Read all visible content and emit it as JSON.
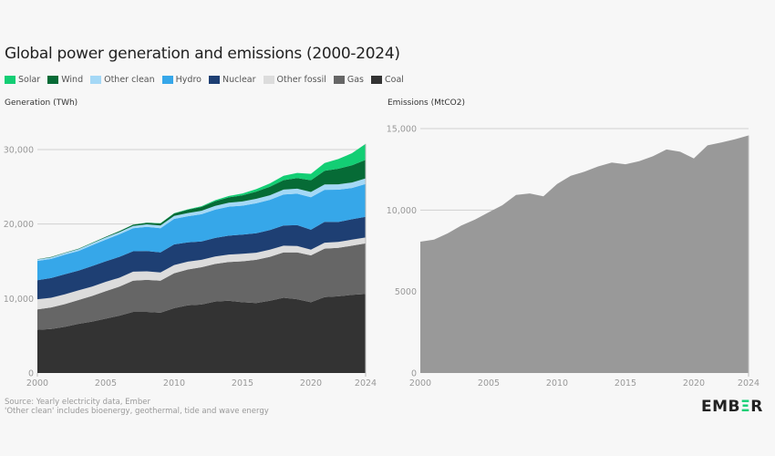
{
  "title": "Global power generation and emissions (2000-2024)",
  "footer": {
    "source": "Source: Yearly electricity data, Ember",
    "note": "'Other clean' includes bioenergy, geothermal, tide and wave energy"
  },
  "logo": "EMBER",
  "legend": [
    {
      "name": "Solar",
      "color": "#13ce74"
    },
    {
      "name": "Wind",
      "color": "#066b36"
    },
    {
      "name": "Other clean",
      "color": "#a4d8f6"
    },
    {
      "name": "Hydro",
      "color": "#36a7e9"
    },
    {
      "name": "Nuclear",
      "color": "#1e3f73"
    },
    {
      "name": "Other fossil",
      "color": "#dcdcdc"
    },
    {
      "name": "Gas",
      "color": "#666666"
    },
    {
      "name": "Coal",
      "color": "#333333"
    }
  ],
  "chart_data": [
    {
      "type": "area",
      "stacked": true,
      "ylabel": "Generation (TWh)",
      "ylim": [
        0,
        30000
      ],
      "yticks": [
        "0",
        "10,000",
        "20,000",
        "30,000"
      ],
      "ytick_values": [
        0,
        10000,
        20000,
        30000
      ],
      "xticks": [
        "2000",
        "2005",
        "2010",
        "2015",
        "2020",
        "2024"
      ],
      "xlim": [
        2000,
        2024
      ],
      "grid": true,
      "legend": "top-left",
      "x": [
        2000,
        2001,
        2002,
        2003,
        2004,
        2005,
        2006,
        2007,
        2008,
        2009,
        2010,
        2011,
        2012,
        2013,
        2014,
        2015,
        2016,
        2017,
        2018,
        2019,
        2020,
        2021,
        2022,
        2023,
        2024
      ],
      "series": [
        {
          "name": "Coal",
          "color": "#333333",
          "values": [
            5800,
            5900,
            6200,
            6600,
            6900,
            7300,
            7700,
            8200,
            8200,
            8100,
            8700,
            9100,
            9200,
            9600,
            9700,
            9500,
            9400,
            9700,
            10100,
            9900,
            9500,
            10200,
            10300,
            10500,
            10600
          ]
        },
        {
          "name": "Gas",
          "color": "#666666",
          "values": [
            2750,
            2900,
            3050,
            3200,
            3450,
            3700,
            3900,
            4200,
            4300,
            4300,
            4700,
            4800,
            5000,
            5050,
            5200,
            5500,
            5800,
            5900,
            6100,
            6300,
            6300,
            6500,
            6500,
            6600,
            6800
          ]
        },
        {
          "name": "Other fossil",
          "color": "#dcdcdc",
          "values": [
            1350,
            1300,
            1300,
            1300,
            1250,
            1250,
            1200,
            1200,
            1150,
            1100,
            1100,
            1050,
            1000,
            1000,
            1000,
            1000,
            950,
            950,
            900,
            850,
            750,
            800,
            800,
            800,
            800
          ]
        },
        {
          "name": "Nuclear",
          "color": "#1e3f73",
          "values": [
            2550,
            2650,
            2700,
            2650,
            2750,
            2750,
            2800,
            2750,
            2730,
            2700,
            2760,
            2600,
            2460,
            2480,
            2540,
            2570,
            2610,
            2640,
            2700,
            2800,
            2690,
            2800,
            2680,
            2740,
            2770
          ]
        },
        {
          "name": "Hydro",
          "color": "#36a7e9",
          "values": [
            2600,
            2570,
            2630,
            2630,
            2800,
            2920,
            3030,
            3080,
            3250,
            3250,
            3430,
            3500,
            3660,
            3800,
            3900,
            3900,
            4030,
            4060,
            4180,
            4220,
            4360,
            4300,
            4330,
            4200,
            4400
          ]
        },
        {
          "name": "Other clean",
          "color": "#a4d8f6",
          "values": [
            200,
            210,
            220,
            240,
            260,
            270,
            290,
            310,
            330,
            360,
            400,
            430,
            460,
            500,
            530,
            560,
            600,
            620,
            650,
            680,
            700,
            710,
            720,
            740,
            760
          ]
        },
        {
          "name": "Wind",
          "color": "#066b36",
          "values": [
            30,
            40,
            50,
            60,
            80,
            100,
            130,
            170,
            220,
            270,
            340,
            440,
            520,
            640,
            710,
            830,
            960,
            1140,
            1270,
            1420,
            1590,
            1850,
            2100,
            2300,
            2500
          ]
        },
        {
          "name": "Solar",
          "color": "#13ce74",
          "values": [
            1,
            2,
            2,
            3,
            3,
            4,
            5,
            8,
            12,
            20,
            30,
            60,
            100,
            140,
            190,
            250,
            330,
            450,
            580,
            700,
            850,
            1040,
            1300,
            1630,
            2130
          ]
        }
      ]
    },
    {
      "type": "area",
      "ylabel": "Emissions (MtCO2)",
      "ylim": [
        0,
        15000
      ],
      "yticks": [
        "0",
        "5000",
        "10,000",
        "15,000"
      ],
      "ytick_values": [
        0,
        5000,
        10000,
        15000
      ],
      "xticks": [
        "2000",
        "2005",
        "2010",
        "2015",
        "2020",
        "2024"
      ],
      "xlim": [
        2000,
        2024
      ],
      "grid": true,
      "color": "#999999",
      "x": [
        2000,
        2001,
        2002,
        2003,
        2004,
        2005,
        2006,
        2007,
        2008,
        2009,
        2010,
        2011,
        2012,
        2013,
        2014,
        2015,
        2016,
        2017,
        2018,
        2019,
        2020,
        2021,
        2022,
        2023,
        2024
      ],
      "values": [
        8060,
        8190,
        8570,
        9050,
        9420,
        9870,
        10300,
        10930,
        11020,
        10840,
        11600,
        12100,
        12350,
        12680,
        12920,
        12810,
        13000,
        13300,
        13720,
        13580,
        13170,
        13970,
        14150,
        14340,
        14580
      ]
    }
  ]
}
